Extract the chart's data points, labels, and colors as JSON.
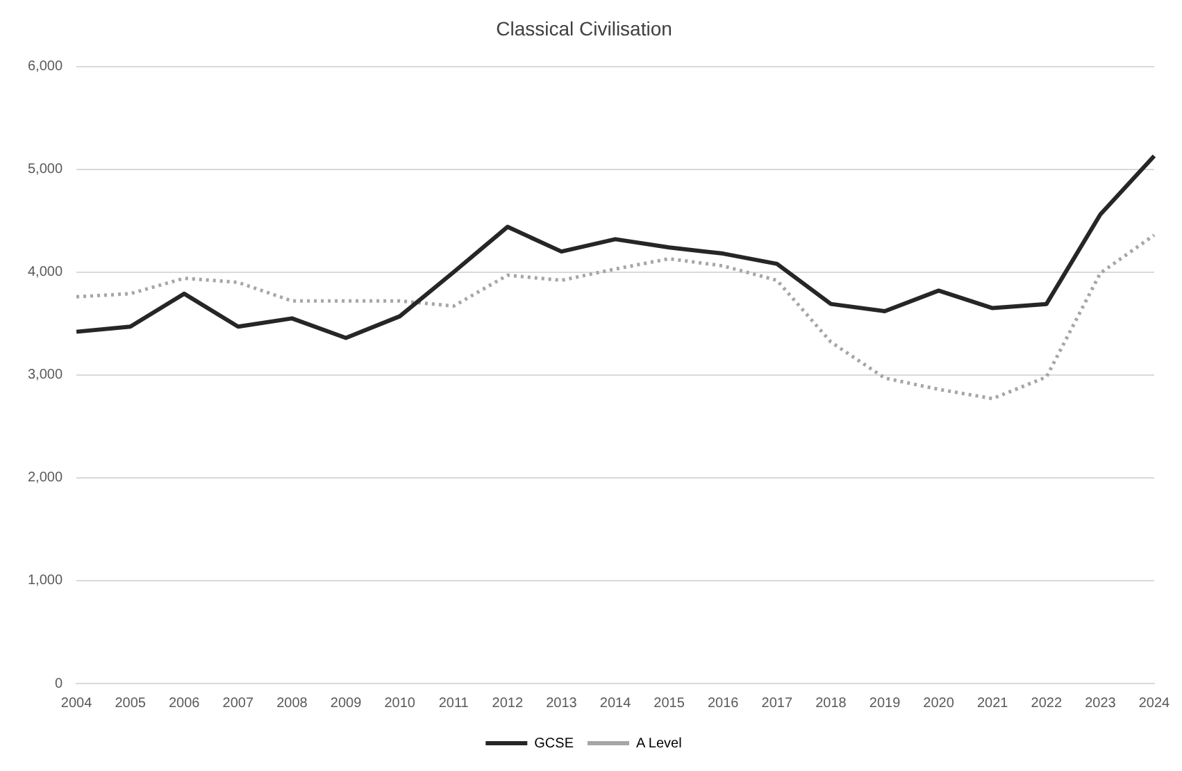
{
  "chart_data": {
    "type": "line",
    "title": "Classical Civilisation",
    "categories": [
      "2004",
      "2005",
      "2006",
      "2007",
      "2008",
      "2009",
      "2010",
      "2011",
      "2012",
      "2013",
      "2014",
      "2015",
      "2016",
      "2017",
      "2018",
      "2019",
      "2020",
      "2021",
      "2022",
      "2023",
      "2024"
    ],
    "series": [
      {
        "name": "GCSE",
        "color": "#262626",
        "line_style": "solid",
        "values": [
          3420,
          3470,
          3790,
          3470,
          3550,
          3360,
          3570,
          4000,
          4440,
          4200,
          4320,
          4240,
          4180,
          4080,
          3690,
          3620,
          3820,
          3650,
          3690,
          4560,
          5130
        ]
      },
      {
        "name": "A Level",
        "color": "#a6a6a6",
        "line_style": "dotted",
        "values": [
          3760,
          3790,
          3940,
          3900,
          3720,
          3720,
          3720,
          3670,
          3970,
          3920,
          4030,
          4130,
          4060,
          3920,
          3320,
          2970,
          2860,
          2770,
          2980,
          3990,
          4360
        ]
      }
    ],
    "ylim": [
      0,
      6000
    ],
    "yticks": [
      {
        "value": 0,
        "label": "0"
      },
      {
        "value": 1000,
        "label": "1,000"
      },
      {
        "value": 2000,
        "label": "2,000"
      },
      {
        "value": 3000,
        "label": "3,000"
      },
      {
        "value": 4000,
        "label": "4,000"
      },
      {
        "value": 5000,
        "label": "5,000"
      },
      {
        "value": 6000,
        "label": "6,000"
      }
    ],
    "grid": "y",
    "legend": "bottom",
    "marker": "none"
  }
}
